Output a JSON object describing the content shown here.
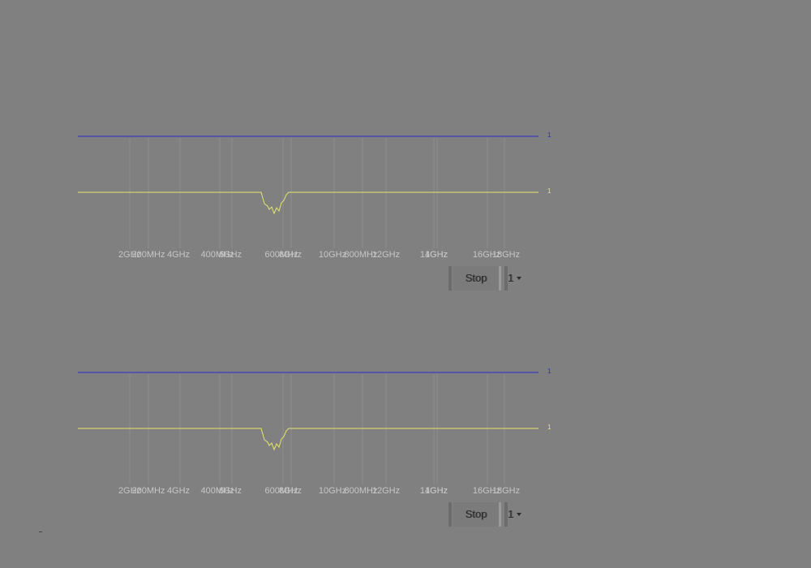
{
  "panels": [
    {
      "id": "panel-1",
      "freq_labels": [
        "2GHz",
        "200MHz",
        "4GHz",
        "400MHz",
        "6GHz",
        "600MHz",
        "8GHz",
        "10GHz",
        "800MHz",
        "12GHz",
        "14GHz",
        "1GHz",
        "16GHz",
        "18GHz"
      ],
      "traces": [
        {
          "name": "blue-trace",
          "color": "#2a2ad0",
          "end_label": "1"
        },
        {
          "name": "yellow-trace",
          "color": "#e6e66a",
          "end_label": "1"
        }
      ],
      "controls": {
        "stop_label": "Stop",
        "count_value": "1"
      }
    },
    {
      "id": "panel-2",
      "freq_labels": [
        "2GHz",
        "200MHz",
        "4GHz",
        "400MHz",
        "6GHz",
        "600MHz",
        "8GHz",
        "10GHz",
        "800MHz",
        "12GHz",
        "14GHz",
        "1GHz",
        "16GHz",
        "18GHz"
      ],
      "traces": [
        {
          "name": "blue-trace",
          "color": "#2a2ad0",
          "end_label": "1"
        },
        {
          "name": "yellow-trace",
          "color": "#e6e66a",
          "end_label": "1"
        }
      ],
      "controls": {
        "stop_label": "Stop",
        "count_value": "1"
      }
    }
  ]
}
